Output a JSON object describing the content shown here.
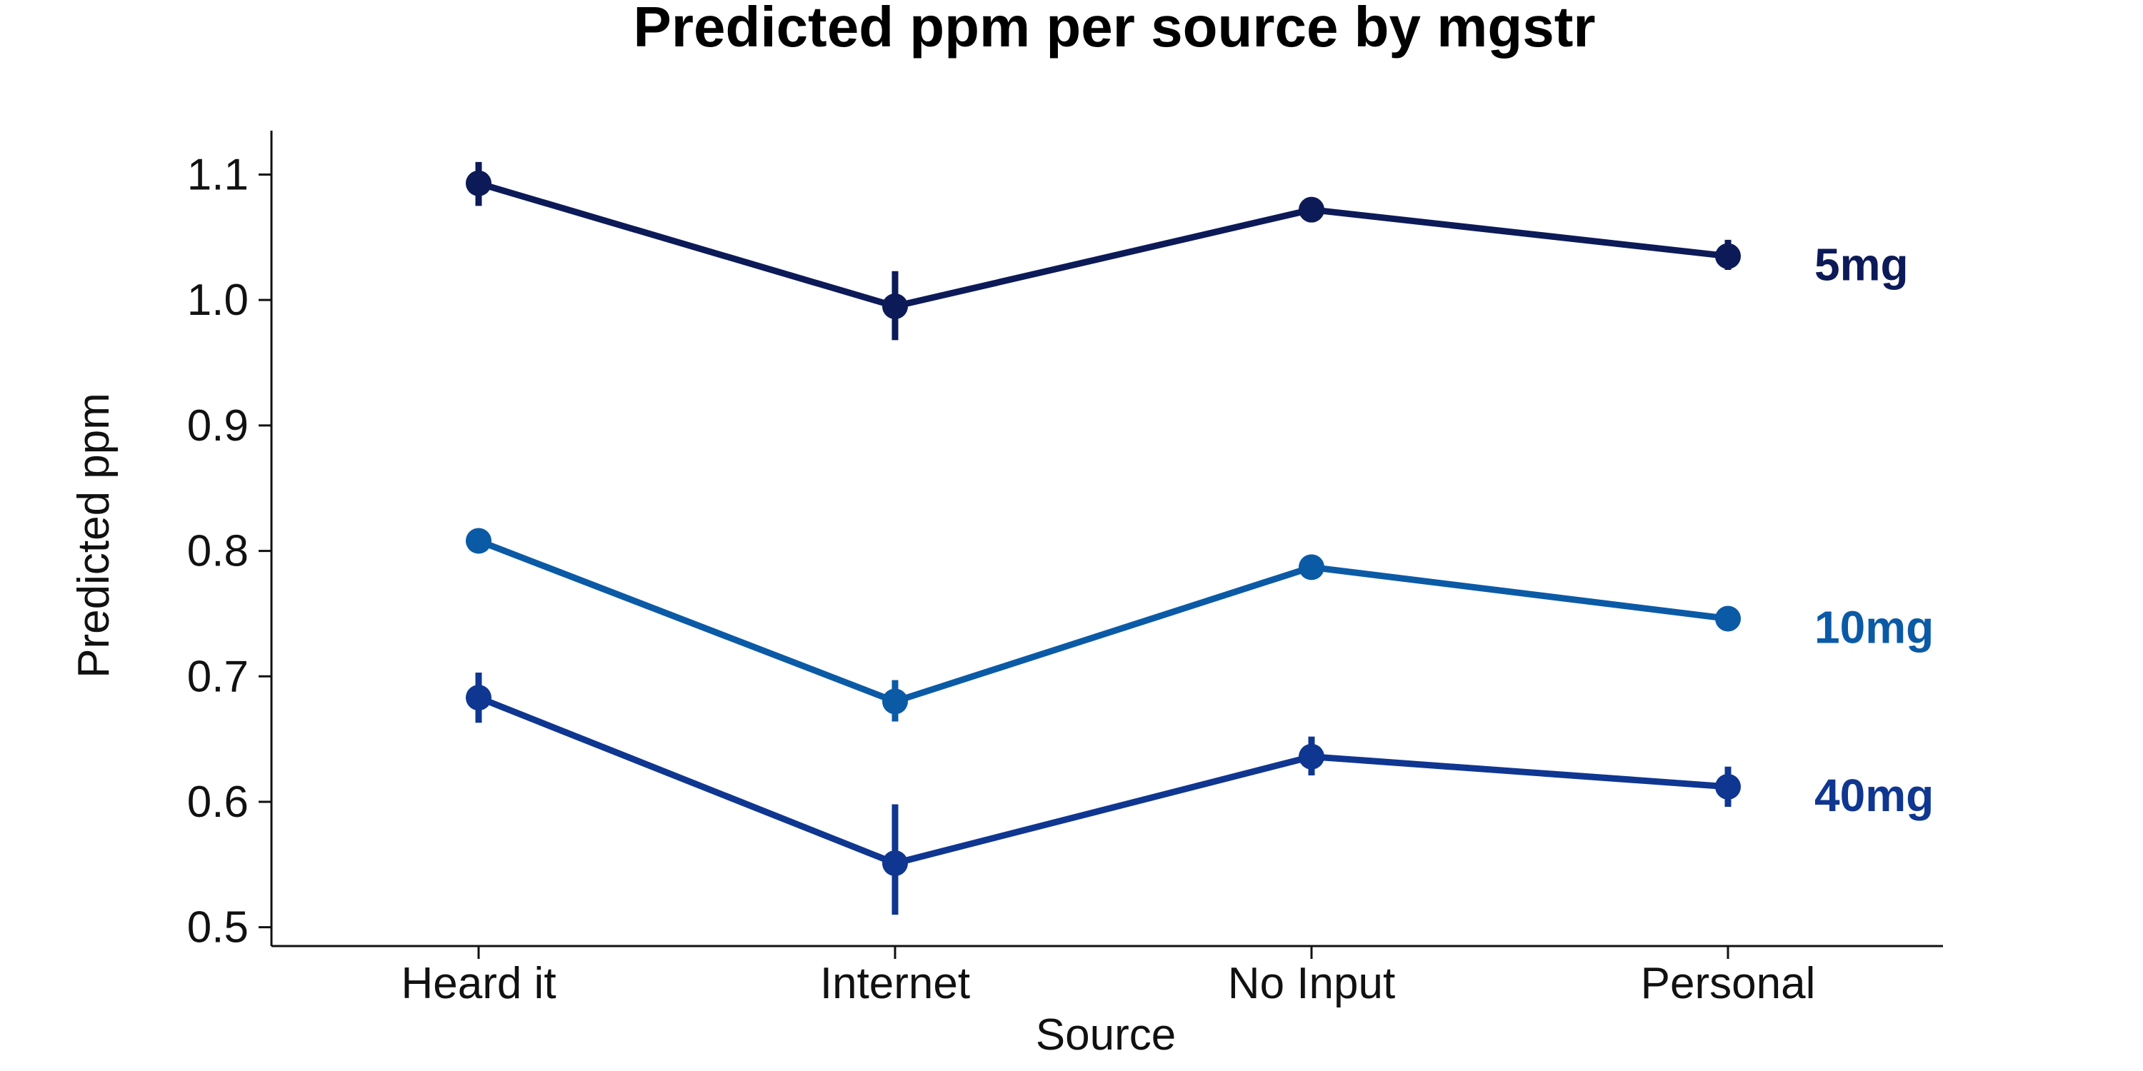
{
  "chart_data": {
    "type": "line",
    "title": "Predicted ppm per source by mgstr",
    "xlabel": "Source",
    "ylabel": "Predicted ppm",
    "categories": [
      "Heard it",
      "Internet",
      "No Input",
      "Personal"
    ],
    "ylim": [
      0.485,
      1.135
    ],
    "yticks": [
      "0.5",
      "0.6",
      "0.7",
      "0.8",
      "0.9",
      "1.0",
      "1.1"
    ],
    "grid": false,
    "legend": "none",
    "series": [
      {
        "name": "5mg",
        "color": "#0c1a58",
        "values": [
          1.093,
          0.995,
          1.072,
          1.035
        ],
        "err_low": [
          1.075,
          0.968,
          1.062,
          1.024
        ],
        "err_high": [
          1.11,
          1.023,
          1.081,
          1.048
        ]
      },
      {
        "name": "10mg",
        "color": "#0b5aa6",
        "values": [
          0.808,
          0.68,
          0.787,
          0.746
        ],
        "err_low": [
          0.804,
          0.664,
          0.781,
          0.74
        ],
        "err_high": [
          0.812,
          0.697,
          0.794,
          0.753
        ]
      },
      {
        "name": "40mg",
        "color": "#0f3690",
        "values": [
          0.683,
          0.551,
          0.636,
          0.612
        ],
        "err_low": [
          0.663,
          0.51,
          0.621,
          0.596
        ],
        "err_high": [
          0.703,
          0.598,
          0.652,
          0.628
        ]
      }
    ]
  }
}
